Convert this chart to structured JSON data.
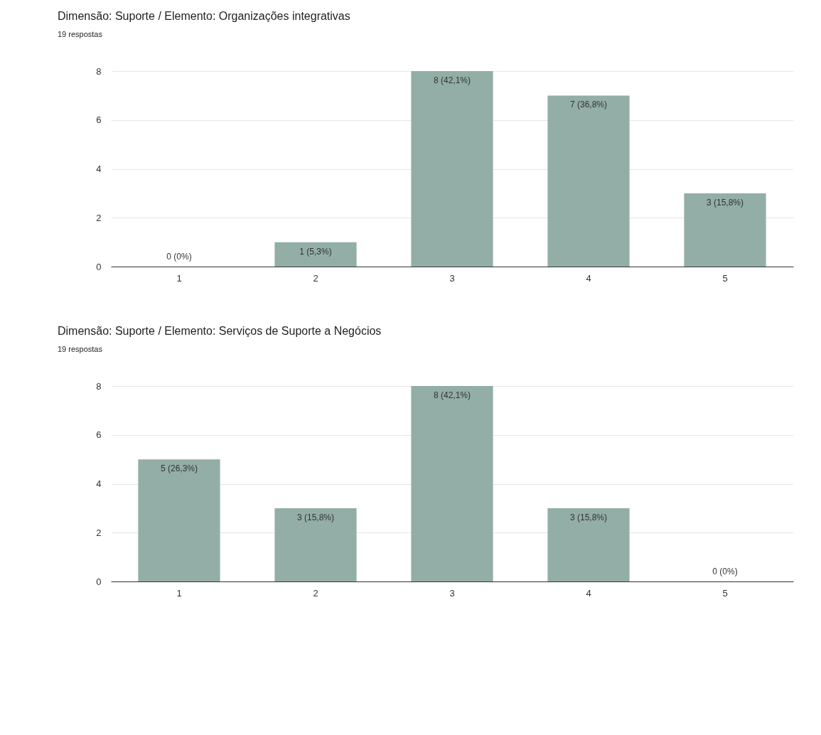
{
  "chart_data": [
    {
      "type": "bar",
      "title": "Dimensão: Suporte / Elemento: Organizações integrativas",
      "subtitle": "19 respostas",
      "categories": [
        "1",
        "2",
        "3",
        "4",
        "5"
      ],
      "values": [
        0,
        1,
        8,
        7,
        3
      ],
      "color": "#93aea6",
      "value_labels": [
        "0 (0%)",
        "1 (5,3%)",
        "8 (42,1%)",
        "7 (36,8%)",
        "3 (15,8%)"
      ],
      "ylim": [
        0,
        8
      ],
      "yticks": [
        0,
        2,
        4,
        6,
        8
      ],
      "grid": "y"
    },
    {
      "type": "bar",
      "title": "Dimensão: Suporte / Elemento: Serviços de Suporte a Negócios",
      "subtitle": "19 respostas",
      "categories": [
        "1",
        "2",
        "3",
        "4",
        "5"
      ],
      "values": [
        5,
        3,
        8,
        3,
        0
      ],
      "color": "#93aea6",
      "value_labels": [
        "5 (26,3%)",
        "3 (15,8%)",
        "8 (42,1%)",
        "3 (15,8%)",
        "0 (0%)"
      ],
      "ylim": [
        0,
        8
      ],
      "yticks": [
        0,
        2,
        4,
        6,
        8
      ],
      "grid": "y"
    }
  ]
}
